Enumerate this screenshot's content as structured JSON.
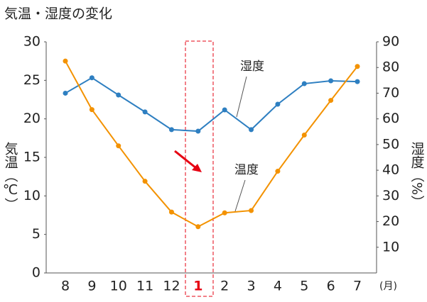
{
  "chart_data": {
    "type": "line",
    "title": "気温・湿度の変化",
    "ylabel": "気温（℃）",
    "y2label": "湿度（%）",
    "xlabel": "(月)",
    "categories": [
      "8",
      "9",
      "10",
      "11",
      "12",
      "1",
      "2",
      "3",
      "4",
      "5",
      "6",
      "7"
    ],
    "series": [
      {
        "name": "湿度",
        "color": "#2e7fc1",
        "axis": "y2",
        "values": [
          70,
          76,
          69.3,
          62.7,
          55.8,
          55.2,
          63.5,
          55.8,
          65.7,
          73.7,
          74.8,
          74.5
        ]
      },
      {
        "name": "温度",
        "color": "#f39200",
        "values": [
          27.5,
          21.2,
          16.5,
          11.9,
          7.9,
          6.0,
          7.8,
          8.1,
          13.2,
          17.9,
          22.4,
          26.8
        ]
      }
    ],
    "ylim": [
      0,
      30
    ],
    "yticks": [
      0,
      5,
      10,
      15,
      20,
      25,
      30
    ],
    "y2lim": [
      0,
      90
    ],
    "y2ticks": [
      10,
      20,
      30,
      40,
      50,
      60,
      70,
      80,
      90
    ],
    "highlight": {
      "category_index": 5,
      "color": "#e60012"
    }
  }
}
